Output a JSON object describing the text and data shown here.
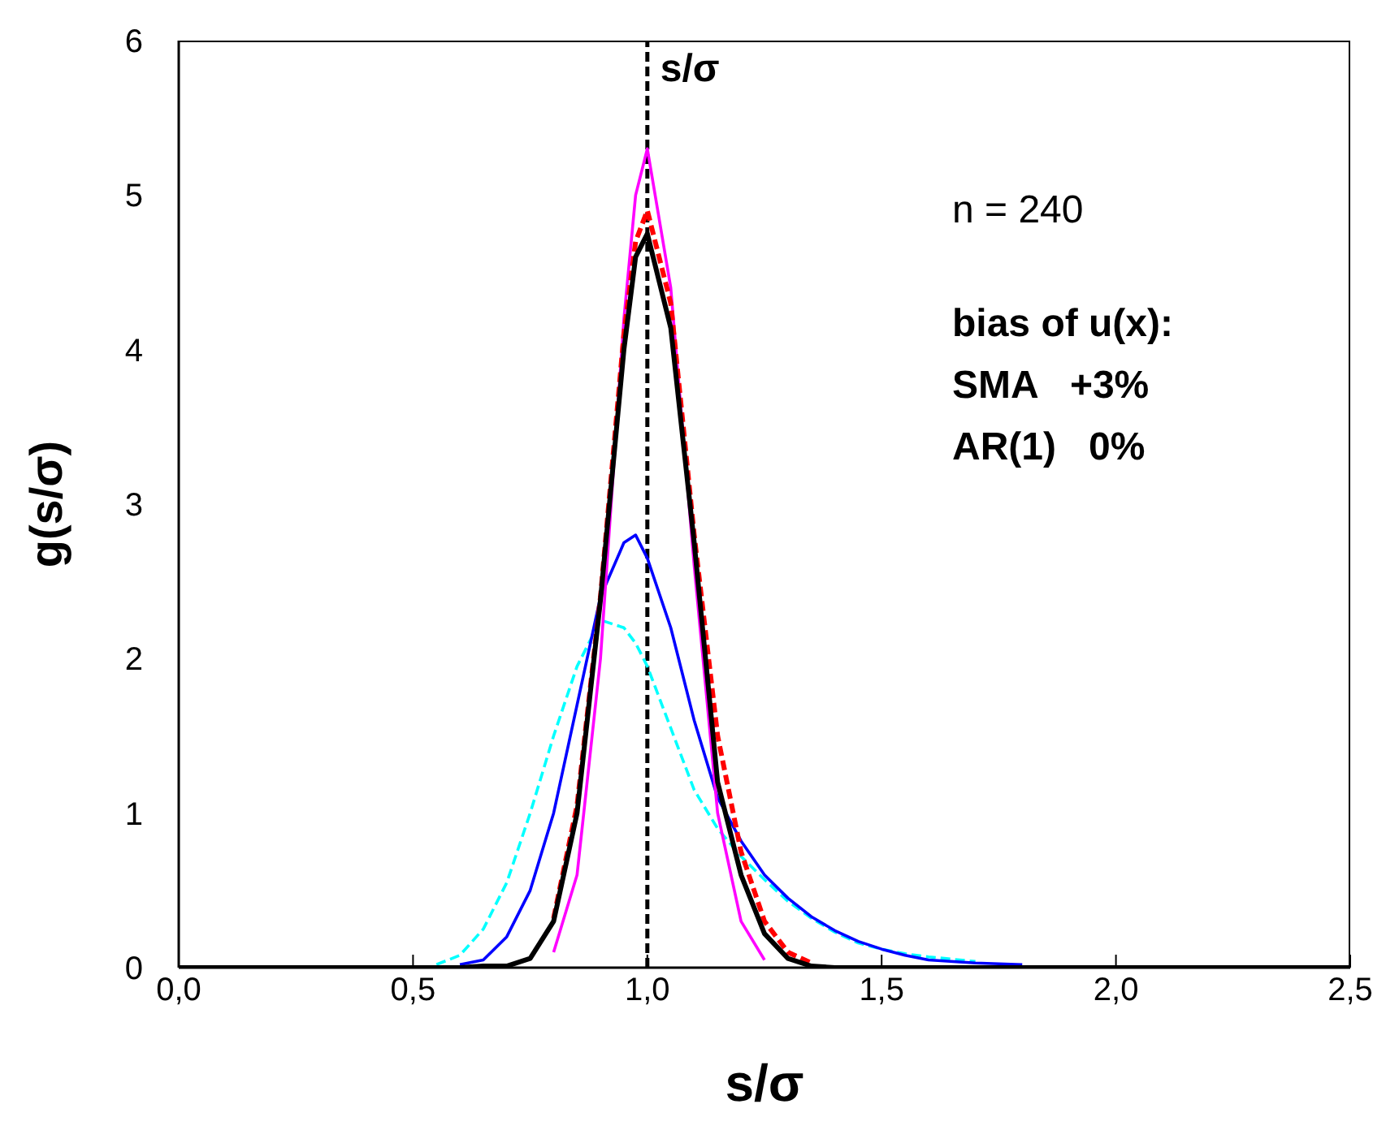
{
  "chart_data": {
    "type": "line",
    "xlabel": "s/σ",
    "ylabel": "g(s/σ)",
    "x": [
      0,
      0.5,
      0.55,
      0.6,
      0.65,
      0.7,
      0.75,
      0.8,
      0.85,
      0.9,
      0.95,
      0.975,
      1.0,
      1.05,
      1.1,
      1.15,
      1.2,
      1.25,
      1.3,
      1.35,
      1.4,
      1.45,
      1.5,
      1.55,
      1.6,
      1.7,
      1.8,
      1.9,
      2.0,
      2.5
    ],
    "series": [
      {
        "color": "#00ffff",
        "line_style": "dashed",
        "values": [
          null,
          null,
          0.02,
          0.08,
          0.25,
          0.55,
          1.0,
          1.5,
          1.95,
          2.25,
          2.2,
          2.1,
          1.95,
          1.55,
          1.15,
          0.9,
          0.72,
          0.57,
          0.43,
          0.32,
          0.23,
          0.16,
          0.12,
          0.09,
          0.07,
          0.04,
          null,
          null,
          null,
          null
        ]
      },
      {
        "color": "#0000ff",
        "line_style": "solid",
        "values": [
          null,
          null,
          null,
          0.02,
          0.05,
          0.2,
          0.5,
          1.0,
          1.7,
          2.4,
          2.75,
          2.8,
          2.65,
          2.2,
          1.6,
          1.1,
          0.82,
          0.6,
          0.45,
          0.33,
          0.24,
          0.17,
          0.12,
          0.08,
          0.05,
          0.03,
          0.02,
          null,
          null,
          null
        ]
      },
      {
        "color": "#ff00ff",
        "line_style": "solid",
        "values": [
          null,
          null,
          null,
          null,
          null,
          null,
          null,
          0.1,
          0.6,
          2.0,
          4.2,
          5.0,
          5.3,
          4.4,
          2.6,
          1.0,
          0.3,
          0.05,
          null,
          null,
          null,
          null,
          null,
          null,
          null,
          null,
          null,
          null,
          null,
          null
        ]
      },
      {
        "color": "#ff0000",
        "line_style": "dashed",
        "values": [
          null,
          null,
          null,
          null,
          null,
          null,
          null,
          0.32,
          1.05,
          2.4,
          4.1,
          4.7,
          4.9,
          4.3,
          2.8,
          1.5,
          0.75,
          0.3,
          0.1,
          0.03,
          null,
          null,
          null,
          null,
          null,
          null,
          null,
          null,
          null,
          null
        ]
      },
      {
        "color": "#000000",
        "line_style": "solid",
        "values": [
          0,
          0,
          0,
          0,
          0.01,
          0.01,
          0.06,
          0.3,
          1.0,
          2.38,
          4.0,
          4.6,
          4.75,
          4.14,
          2.75,
          1.2,
          0.6,
          0.22,
          0.06,
          0.01,
          0,
          0,
          0,
          0,
          0,
          0,
          0,
          0,
          0,
          0
        ]
      }
    ],
    "xlim": [
      0,
      2.5
    ],
    "xticks": [
      {
        "value": 0,
        "label": "0,0"
      },
      {
        "value": 0.5,
        "label": "0,5"
      },
      {
        "value": 1,
        "label": "1,0"
      },
      {
        "value": 1.5,
        "label": "1,5"
      },
      {
        "value": 2,
        "label": "2,0"
      },
      {
        "value": 2.5,
        "label": "2,5"
      }
    ],
    "ylim": [
      0,
      6
    ],
    "yticks": [
      0,
      1,
      2,
      3,
      4,
      5,
      6
    ],
    "ref_lines": [
      {
        "axis": "x",
        "value": 1,
        "label": "s/σ",
        "color": "#000000",
        "line_style": "dashed"
      }
    ],
    "annotations": [
      "n = 240",
      "bias of u(x):",
      "SMA   +3%",
      "AR(1)   0%"
    ],
    "grid": false,
    "legend": false
  }
}
